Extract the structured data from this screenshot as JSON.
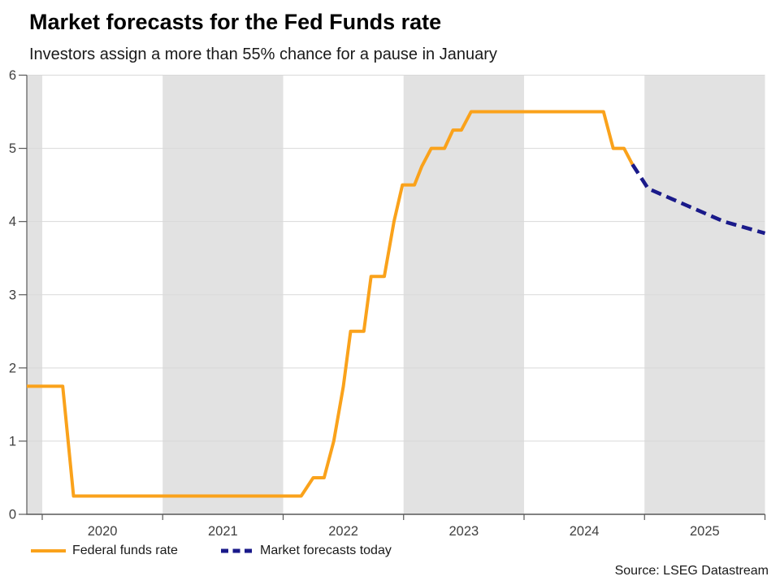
{
  "header": {
    "title": "Market forecasts for the Fed Funds rate",
    "subtitle": "Investors assign a more than 55% chance for a pause in January"
  },
  "legend": {
    "items": [
      {
        "label": "Federal funds rate",
        "color": "#FAA21B",
        "style": "solid"
      },
      {
        "label": "Market forecasts today",
        "color": "#1A1A8A",
        "style": "dashed"
      }
    ]
  },
  "source": "Source: LSEG Datastream",
  "chart_data": {
    "type": "line",
    "title": "Market forecasts for the Fed Funds rate",
    "subtitle": "Investors assign a more than 55% chance for a pause in January",
    "xlabel": "",
    "ylabel": "",
    "x_range": [
      2019.872,
      2026.0
    ],
    "y_range": [
      0,
      6
    ],
    "y_ticks": [
      0,
      1,
      2,
      3,
      4,
      5,
      6
    ],
    "x_tick_boundaries": [
      2020,
      2021,
      2022,
      2023,
      2024,
      2025,
      2026
    ],
    "x_tick_labels": [
      "2020",
      "2021",
      "2022",
      "2023",
      "2024",
      "2025"
    ],
    "grid": true,
    "legend_position": "bottom-left",
    "shaded_bands": [
      [
        2019.872,
        2020.0
      ],
      [
        2021.0,
        2022.0
      ],
      [
        2023.0,
        2024.0
      ],
      [
        2025.0,
        2026.0
      ]
    ],
    "series": [
      {
        "name": "Federal funds rate",
        "color": "#FAA21B",
        "dash": "solid",
        "points": [
          [
            2019.872,
            1.75
          ],
          [
            2020.17,
            1.75
          ],
          [
            2020.26,
            0.25
          ],
          [
            2022.15,
            0.25
          ],
          [
            2022.25,
            0.5
          ],
          [
            2022.34,
            0.5
          ],
          [
            2022.42,
            1.0
          ],
          [
            2022.5,
            1.75
          ],
          [
            2022.56,
            2.5
          ],
          [
            2022.67,
            2.5
          ],
          [
            2022.73,
            3.25
          ],
          [
            2022.84,
            3.25
          ],
          [
            2022.92,
            4.0
          ],
          [
            2022.99,
            4.5
          ],
          [
            2023.09,
            4.5
          ],
          [
            2023.15,
            4.75
          ],
          [
            2023.23,
            5.0
          ],
          [
            2023.34,
            5.0
          ],
          [
            2023.41,
            5.25
          ],
          [
            2023.48,
            5.25
          ],
          [
            2023.56,
            5.5
          ],
          [
            2024.66,
            5.5
          ],
          [
            2024.74,
            5.0
          ],
          [
            2024.83,
            5.0
          ],
          [
            2024.9,
            4.78
          ]
        ]
      },
      {
        "name": "Market forecasts today",
        "color": "#1A1A8A",
        "dash": "dashed",
        "points": [
          [
            2024.9,
            4.78
          ],
          [
            2025.03,
            4.45
          ],
          [
            2025.35,
            4.22
          ],
          [
            2025.66,
            4.0
          ],
          [
            2026.0,
            3.84
          ]
        ]
      }
    ],
    "colors": {
      "band": "#e2e2e2",
      "gridline": "#d9d9d9",
      "axis": "#595959",
      "tick_label": "#404040"
    }
  }
}
